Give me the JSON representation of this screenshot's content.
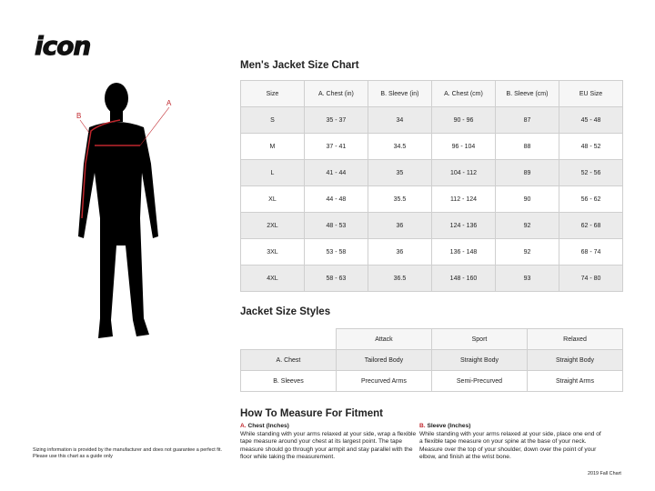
{
  "brand": {
    "logo_text": "icon"
  },
  "figure": {
    "label_a": "A",
    "label_b": "B",
    "accent_color": "#c0272d"
  },
  "size_chart": {
    "title": "Men's Jacket Size Chart",
    "headers": [
      "Size",
      "A. Chest (in)",
      "B. Sleeve (in)",
      "A. Chest (cm)",
      "B. Sleeve (cm)",
      "EU Size"
    ],
    "rows": [
      [
        "S",
        "35 - 37",
        "34",
        "90 - 96",
        "87",
        "45 - 48"
      ],
      [
        "M",
        "37 - 41",
        "34.5",
        "96 - 104",
        "88",
        "48 - 52"
      ],
      [
        "L",
        "41 - 44",
        "35",
        "104 - 112",
        "89",
        "52 - 56"
      ],
      [
        "XL",
        "44 - 48",
        "35.5",
        "112 - 124",
        "90",
        "56 - 62"
      ],
      [
        "2XL",
        "48 - 53",
        "36",
        "124 - 136",
        "92",
        "62 - 68"
      ],
      [
        "3XL",
        "53 - 58",
        "36",
        "136 - 148",
        "92",
        "68 - 74"
      ],
      [
        "4XL",
        "58 - 63",
        "36.5",
        "148 - 160",
        "93",
        "74 - 80"
      ]
    ]
  },
  "styles": {
    "title": "Jacket Size Styles",
    "headers": [
      "Attack",
      "Sport",
      "Relaxed"
    ],
    "rows": [
      [
        "A. Chest",
        "Tailored Body",
        "Straight Body",
        "Straight Body"
      ],
      [
        "B. Sleeves",
        "Precurved Arms",
        "Semi-Precurved",
        "Straight Arms"
      ]
    ]
  },
  "measure": {
    "title": "How To Measure For Fitment",
    "chest": {
      "letter": "A.",
      "title": "Chest (Inches)",
      "text": "While standing with your arms relaxed at your side, wrap a flexible tape measure around your chest at its largest point. The tape measure should go through your armpit and stay parallel with the floor while taking the measurement."
    },
    "sleeve": {
      "letter": "B.",
      "title": "Sleeve (Inches)",
      "text": "While standing with your arms relaxed at your side, place one end of a flexible tape measure on your spine at the base of your neck. Measure over the top of your shoulder, down over the point of your elbow, and finish at the wrist bone."
    }
  },
  "disclaimer": {
    "line1": "Sizing information is provided by the manufacturer and does not guarantee a perfect fit.",
    "line2": "Please use this chart as a guide only"
  },
  "footer": "2019 Fall Chart"
}
